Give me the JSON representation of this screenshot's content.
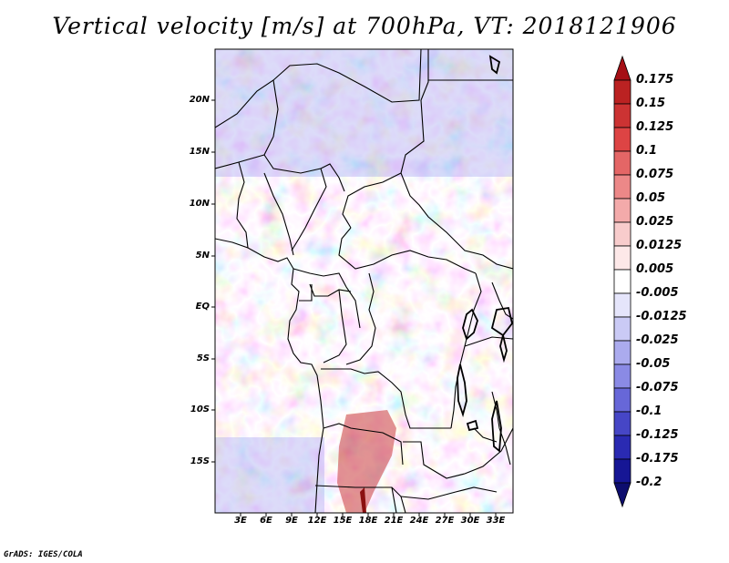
{
  "title": "Vertical velocity [m/s] at 700hPa, VT: 2018121906",
  "credit": "GrADS: IGES/COLA",
  "latitude_labels": [
    "20N",
    "15N",
    "10N",
    "5N",
    "EQ",
    "5S",
    "10S",
    "15S"
  ],
  "longitude_labels": [
    "3E",
    "6E",
    "9E",
    "12E",
    "15E",
    "18E",
    "21E",
    "24E",
    "27E",
    "30E",
    "33E"
  ],
  "colorbar": {
    "labels": [
      "0.175",
      "0.15",
      "0.125",
      "0.1",
      "0.075",
      "0.05",
      "0.025",
      "0.0125",
      "0.005",
      "-0.005",
      "-0.0125",
      "-0.025",
      "-0.05",
      "-0.075",
      "-0.1",
      "-0.125",
      "-0.175",
      "-0.2"
    ],
    "colors": [
      "#a50f15",
      "#bb2222",
      "#cc3333",
      "#dd4444",
      "#e46666",
      "#ec8888",
      "#f3aaaa",
      "#f8cccc",
      "#fde8e8",
      "#ffffff",
      "#e5e5fb",
      "#cacaf5",
      "#ababee",
      "#8a8ae5",
      "#6767d8",
      "#4646c6",
      "#2a2ab2",
      "#161695",
      "#0d0d6e"
    ]
  }
}
